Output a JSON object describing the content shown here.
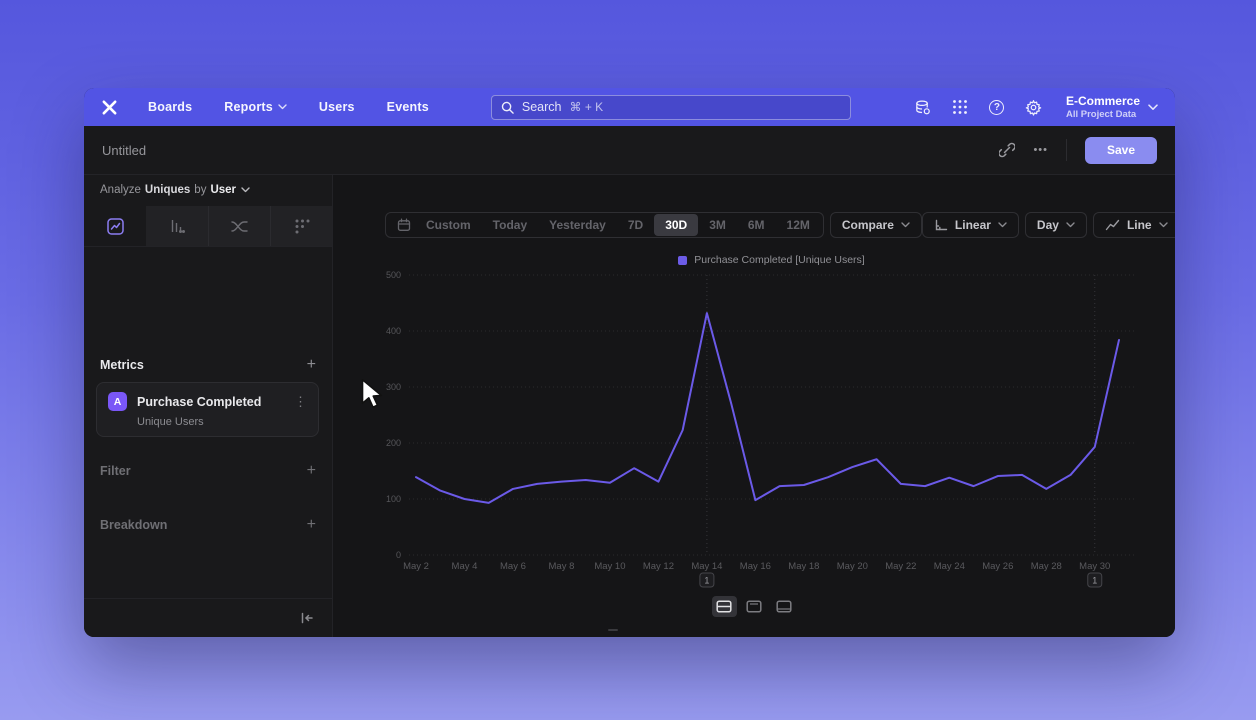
{
  "nav": {
    "menu": [
      {
        "label": "Boards",
        "chevron": false
      },
      {
        "label": "Reports",
        "chevron": true
      },
      {
        "label": "Users",
        "chevron": false
      },
      {
        "label": "Events",
        "chevron": false
      }
    ],
    "search": {
      "placeholder": "Search",
      "shortcut": "⌘ + K"
    },
    "project": {
      "name": "E-Commerce",
      "scope": "All Project Data"
    }
  },
  "report_header": {
    "title": "Untitled",
    "dots": "•••",
    "save_label": "Save"
  },
  "sidebar": {
    "analyze": {
      "prefix": "Analyze",
      "metric": "Uniques",
      "connector": "by",
      "value": "User"
    },
    "tabs": [
      "insights",
      "funnels",
      "flows",
      "retention"
    ],
    "metrics_label": "Metrics",
    "metric_card": {
      "badge": "A",
      "event": "Purchase Completed",
      "aggregation": "Unique Users",
      "kebab": "⋮"
    },
    "filter_label": "Filter",
    "breakdown_label": "Breakdown"
  },
  "toolbar": {
    "date_ranges": [
      "Custom",
      "Today",
      "Yesterday",
      "7D",
      "30D",
      "3M",
      "6M",
      "12M"
    ],
    "selected_range": "30D",
    "compare_label": "Compare",
    "scale_label": "Linear",
    "interval_label": "Day",
    "chart_type_label": "Line"
  },
  "chart_data": {
    "type": "line",
    "legend": "Purchase Completed [Unique Users]",
    "legend_position": "top-center",
    "grid": "dotted",
    "ylim": [
      0,
      500
    ],
    "yticks": [
      0,
      100,
      200,
      300,
      400,
      500
    ],
    "x_tick_every": 2,
    "x": [
      "May 2",
      "May 3",
      "May 4",
      "May 5",
      "May 6",
      "May 7",
      "May 8",
      "May 9",
      "May 10",
      "May 11",
      "May 12",
      "May 13",
      "May 14",
      "May 15",
      "May 16",
      "May 17",
      "May 18",
      "May 19",
      "May 20",
      "May 21",
      "May 22",
      "May 23",
      "May 24",
      "May 25",
      "May 26",
      "May 27",
      "May 28",
      "May 29",
      "May 30",
      "May 31"
    ],
    "series": [
      {
        "name": "Purchase Completed [Unique Users]",
        "color": "#6b5ae8",
        "values": [
          139,
          115,
          100,
          93,
          118,
          127,
          131,
          134,
          129,
          155,
          131,
          223,
          432,
          271,
          98,
          123,
          125,
          139,
          157,
          171,
          127,
          123,
          138,
          123,
          141,
          143,
          118,
          143,
          193,
          384
        ]
      }
    ],
    "annotations": [
      {
        "x": "May 14",
        "label": "1"
      },
      {
        "x": "May 30",
        "label": "1"
      }
    ]
  },
  "colors": {
    "accent": "#7856ff",
    "line": "#6b5ae8",
    "save_button": "#8a8cf0",
    "nav_bar": "#5254e4"
  }
}
